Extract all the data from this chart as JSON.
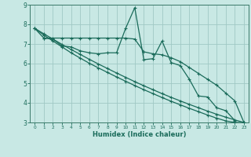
{
  "xlabel": "Humidex (Indice chaleur)",
  "bg_color": "#c8e8e4",
  "grid_color": "#a0c8c4",
  "line_color": "#1a6b5a",
  "spine_color": "#3a7a6a",
  "xlim": [
    -0.5,
    23.5
  ],
  "ylim": [
    3,
    9
  ],
  "xticks": [
    0,
    1,
    2,
    3,
    4,
    5,
    6,
    7,
    8,
    9,
    10,
    11,
    12,
    13,
    14,
    15,
    16,
    17,
    18,
    19,
    20,
    21,
    22,
    23
  ],
  "yticks": [
    3,
    4,
    5,
    6,
    7,
    8,
    9
  ],
  "series": [
    {
      "x": [
        0,
        1,
        2,
        3,
        4,
        5,
        6,
        7,
        8,
        9,
        10,
        11,
        12,
        13,
        14,
        15,
        16,
        17,
        18,
        19,
        20,
        21,
        22
      ],
      "y": [
        7.8,
        7.3,
        7.25,
        6.9,
        6.85,
        6.65,
        6.55,
        6.5,
        6.55,
        6.55,
        7.8,
        8.85,
        6.2,
        6.25,
        7.15,
        6.05,
        5.9,
        5.2,
        4.35,
        4.3,
        3.75,
        3.6,
        3.1
      ]
    },
    {
      "x": [
        1,
        2,
        3,
        4,
        5,
        6,
        7,
        8,
        9,
        10,
        11,
        12,
        13,
        14,
        15,
        16,
        17,
        18,
        19,
        20,
        21,
        22,
        23
      ],
      "y": [
        7.3,
        7.3,
        7.3,
        7.3,
        7.3,
        7.3,
        7.3,
        7.3,
        7.3,
        7.3,
        7.25,
        6.6,
        6.5,
        6.45,
        6.3,
        6.1,
        5.8,
        5.5,
        5.2,
        4.9,
        4.5,
        4.1,
        3.0
      ]
    },
    {
      "x": [
        0,
        1,
        2,
        3,
        4,
        5,
        6,
        7,
        8,
        9,
        10,
        11,
        12,
        13,
        14,
        15,
        16,
        17,
        18,
        19,
        20,
        21,
        22,
        23
      ],
      "y": [
        7.8,
        7.45,
        7.15,
        6.85,
        6.55,
        6.28,
        6.02,
        5.78,
        5.55,
        5.32,
        5.1,
        4.88,
        4.67,
        4.47,
        4.27,
        4.08,
        3.9,
        3.72,
        3.55,
        3.38,
        3.22,
        3.08,
        3.0,
        3.0
      ]
    },
    {
      "x": [
        0,
        1,
        2,
        3,
        4,
        5,
        6,
        7,
        8,
        9,
        10,
        11,
        12,
        13,
        14,
        15,
        16,
        17,
        18,
        19,
        20,
        21,
        22,
        23
      ],
      "y": [
        7.8,
        7.52,
        7.25,
        6.98,
        6.72,
        6.47,
        6.22,
        5.98,
        5.75,
        5.52,
        5.3,
        5.08,
        4.87,
        4.67,
        4.47,
        4.28,
        4.1,
        3.92,
        3.75,
        3.58,
        3.42,
        3.27,
        3.13,
        3.0
      ]
    }
  ]
}
